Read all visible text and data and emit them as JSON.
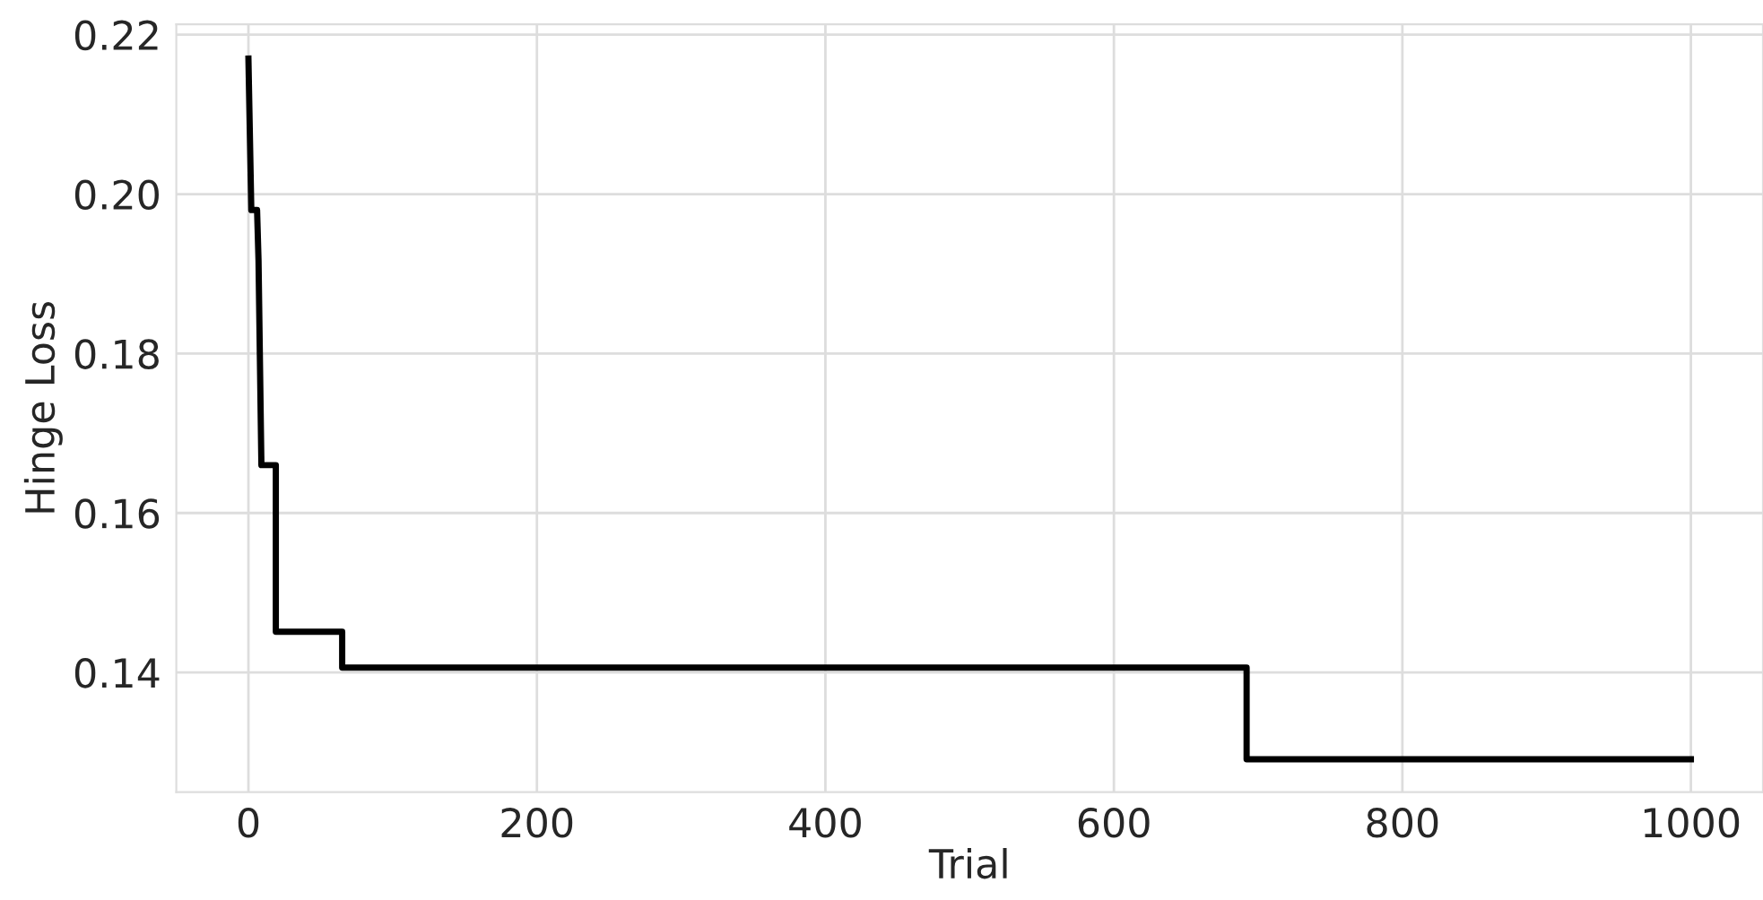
{
  "chart_data": {
    "type": "line",
    "xlabel": "Trial",
    "ylabel": "Hinge Loss",
    "series": [
      {
        "color": "#000000",
        "x": [
          0,
          2,
          6,
          7,
          9,
          19,
          19,
          65,
          65,
          692,
          692,
          1000
        ],
        "values": [
          0.217,
          0.198,
          0.198,
          0.1917,
          0.166,
          0.166,
          0.1451,
          0.1451,
          0.1406,
          0.1406,
          0.1291,
          0.1291
        ]
      }
    ],
    "xlim": [
      -50,
      1050
    ],
    "ylim": [
      0.125,
      0.2213
    ],
    "xticks": [
      0,
      200,
      400,
      600,
      800,
      1000
    ],
    "yticks": [
      {
        "value": 0.14,
        "label": "0.14"
      },
      {
        "value": 0.16,
        "label": "0.16"
      },
      {
        "value": 0.18,
        "label": "0.18"
      },
      {
        "value": 0.2,
        "label": "0.20"
      },
      {
        "value": 0.22,
        "label": "0.22"
      }
    ],
    "grid": true,
    "legend": false,
    "marker": "none",
    "line_style": "solid"
  }
}
